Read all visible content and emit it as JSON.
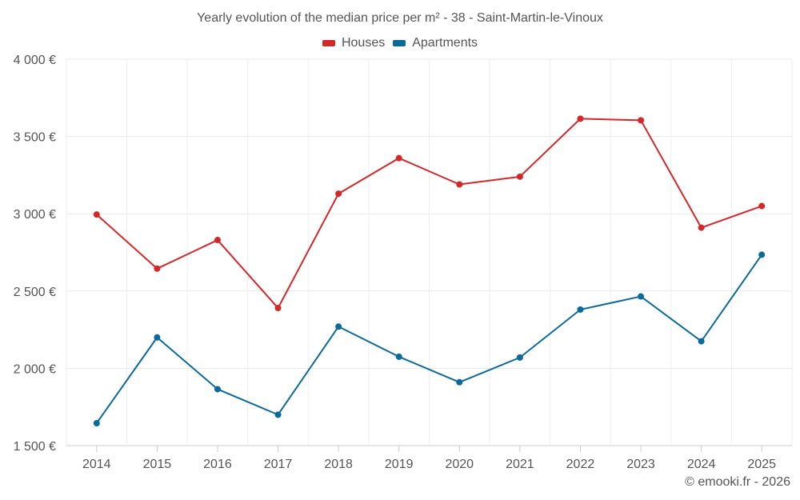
{
  "chart_data": {
    "type": "line",
    "title": "Yearly evolution of the median price per m² - 38 - Saint-Martin-le-Vinoux",
    "xlabel": "",
    "ylabel": "",
    "categories": [
      "2014",
      "2015",
      "2016",
      "2017",
      "2018",
      "2019",
      "2020",
      "2021",
      "2022",
      "2023",
      "2024",
      "2025"
    ],
    "series": [
      {
        "name": "Houses",
        "color": "#d62728",
        "values": [
          2995,
          2645,
          2830,
          2390,
          3130,
          3360,
          3190,
          3240,
          3615,
          3605,
          2910,
          3050
        ]
      },
      {
        "name": "Apartments",
        "color": "#0b6a9c",
        "values": [
          1645,
          2200,
          1865,
          1700,
          2270,
          2075,
          1910,
          2070,
          2380,
          2465,
          2175,
          2735
        ]
      }
    ],
    "ylim": [
      1500,
      4000
    ],
    "yticks": [
      1500,
      2000,
      2500,
      3000,
      3500,
      4000
    ],
    "ytick_labels": [
      "1 500 €",
      "2 000 €",
      "2 500 €",
      "3 000 €",
      "3 500 €",
      "4 000 €"
    ],
    "grid": true,
    "legend_position": "top-center"
  },
  "footer": {
    "copyright": "© emooki.fr - 2026"
  }
}
